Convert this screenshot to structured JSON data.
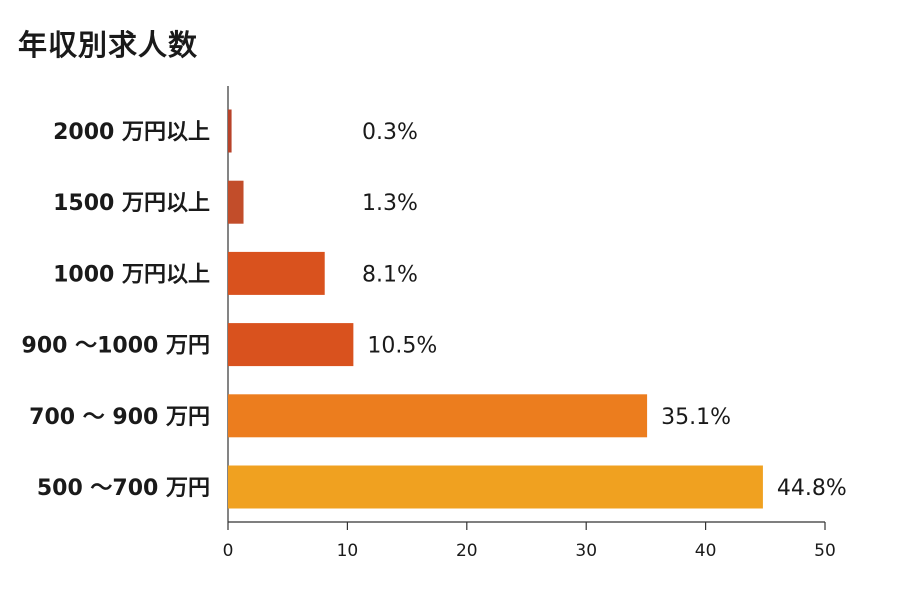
{
  "chart_data": {
    "type": "bar",
    "orientation": "horizontal",
    "title": "年収別求人数",
    "xlabel": "",
    "ylabel": "",
    "xlim": [
      0,
      50
    ],
    "x_ticks": [
      0,
      10,
      20,
      30,
      40,
      50
    ],
    "grid": false,
    "categories": [
      "2000 万円以上",
      "1500 万円以上",
      "1000 万円以上",
      "900 ～1000 万円",
      "700 ～ 900 万円",
      "500 ～700 万円"
    ],
    "values": [
      0.3,
      1.3,
      8.1,
      10.5,
      35.1,
      44.8
    ],
    "value_labels": [
      "0.3%",
      "1.3%",
      "8.1%",
      "10.5%",
      "35.1%",
      "44.8%"
    ],
    "colors": [
      "#b8432a",
      "#c24d2a",
      "#d9521e",
      "#d9521e",
      "#ec7d1e",
      "#f0a120"
    ]
  }
}
